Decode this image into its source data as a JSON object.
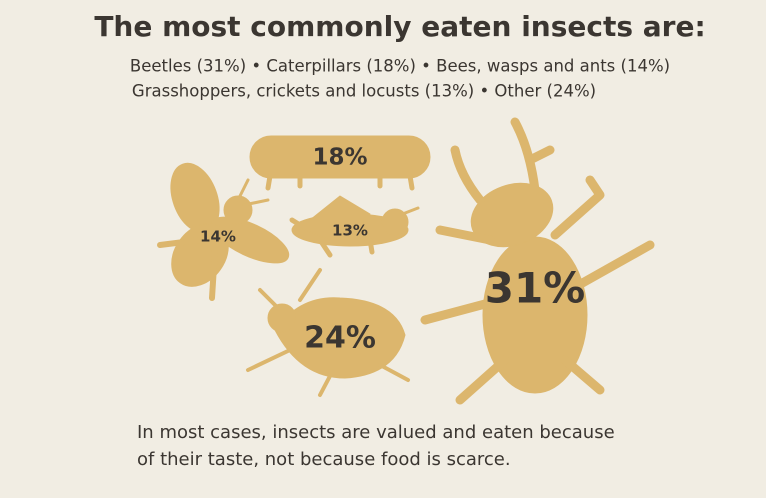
{
  "title": "The most commonly eaten insects are:",
  "subtitle": [
    "Beetles (31%) • Caterpillars (18%) • Bees, wasps and ants (14%)",
    "Grasshoppers, crickets and locusts (13%) • Other (24%)"
  ],
  "insects": [
    {
      "label": "18%"
    },
    {
      "label": "14%"
    },
    {
      "label": "13%"
    },
    {
      "label": "24%"
    },
    {
      "label": "31%"
    }
  ],
  "footer": [
    "In most cases, insects are valued and eaten because",
    "of their taste, not because food is scarce."
  ]
}
